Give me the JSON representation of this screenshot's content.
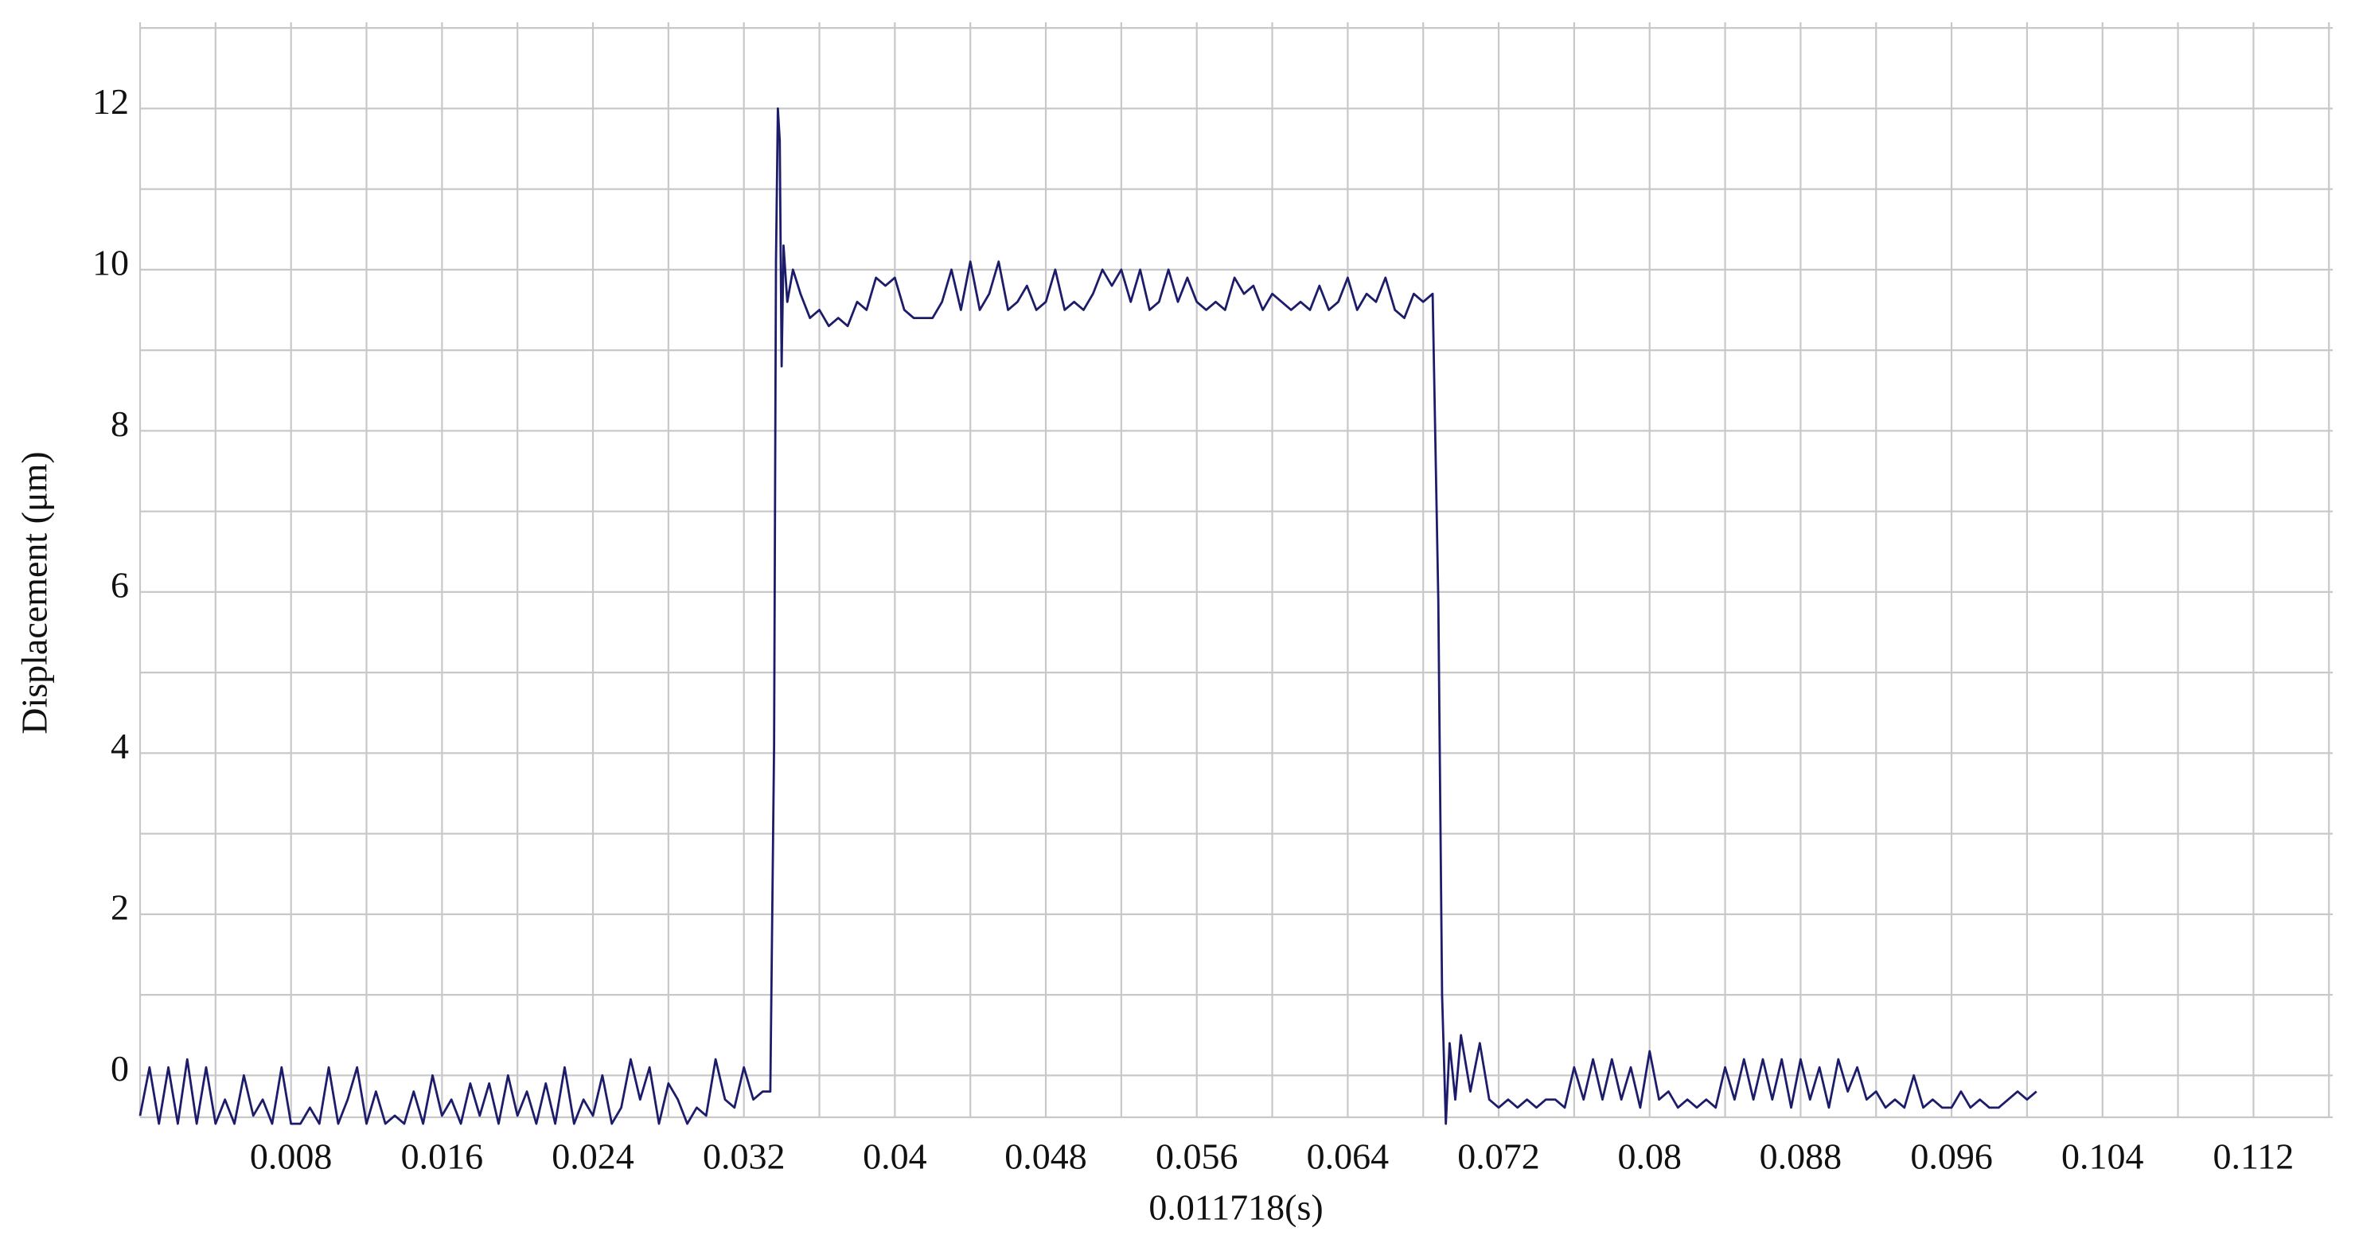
{
  "chart_data": {
    "type": "line",
    "x_label": "0.011718(s)",
    "y_label": "Displacement  (μm)",
    "color": "#1c1c6b",
    "grid": true,
    "xlim": [
      0,
      0.1162
    ],
    "ylim": [
      -0.52,
      13.07
    ],
    "xticks": [
      0.008,
      0.016,
      0.024,
      0.032,
      0.04,
      0.048,
      0.056,
      0.064,
      0.072,
      0.08,
      0.088,
      0.096,
      0.104,
      0.112
    ],
    "yticks": [
      0,
      2,
      4,
      6,
      8,
      10,
      12
    ],
    "x_minor_grid": [
      0,
      0.004,
      0.012,
      0.02,
      0.028,
      0.036,
      0.044,
      0.052,
      0.06,
      0.068,
      0.076,
      0.084,
      0.092,
      0.1,
      0.108,
      0.116
    ],
    "y_minor_grid": [
      1,
      3,
      5,
      7,
      9,
      11,
      13
    ],
    "x": [
      0,
      0.0005,
      0.001,
      0.0015,
      0.002,
      0.0025,
      0.003,
      0.0035,
      0.004,
      0.0045,
      0.005,
      0.0055,
      0.006,
      0.0065,
      0.007,
      0.0075,
      0.008,
      0.0085,
      0.009,
      0.0095,
      0.01,
      0.0105,
      0.011,
      0.0115,
      0.012,
      0.0125,
      0.013,
      0.0135,
      0.014,
      0.0145,
      0.015,
      0.0155,
      0.016,
      0.0165,
      0.017,
      0.0175,
      0.018,
      0.0185,
      0.019,
      0.0195,
      0.02,
      0.0205,
      0.021,
      0.0215,
      0.022,
      0.0225,
      0.023,
      0.0235,
      0.024,
      0.0245,
      0.025,
      0.0255,
      0.026,
      0.0265,
      0.027,
      0.0275,
      0.028,
      0.0285,
      0.029,
      0.0295,
      0.03,
      0.0305,
      0.031,
      0.0315,
      0.032,
      0.0325,
      0.033,
      0.0334,
      0.0336,
      0.0337,
      0.0338,
      0.0339,
      0.034,
      0.0341,
      0.0343,
      0.0346,
      0.035,
      0.0355,
      0.036,
      0.0365,
      0.037,
      0.0375,
      0.038,
      0.0385,
      0.039,
      0.0395,
      0.04,
      0.0405,
      0.041,
      0.0415,
      0.042,
      0.0425,
      0.043,
      0.0435,
      0.044,
      0.0445,
      0.045,
      0.0455,
      0.046,
      0.0465,
      0.047,
      0.0475,
      0.048,
      0.0485,
      0.049,
      0.0495,
      0.05,
      0.0505,
      0.051,
      0.0515,
      0.052,
      0.0525,
      0.053,
      0.0535,
      0.054,
      0.0545,
      0.055,
      0.0555,
      0.056,
      0.0565,
      0.057,
      0.0575,
      0.058,
      0.0585,
      0.059,
      0.0595,
      0.06,
      0.0605,
      0.061,
      0.0615,
      0.062,
      0.0625,
      0.063,
      0.0635,
      0.064,
      0.0645,
      0.065,
      0.0655,
      0.066,
      0.0665,
      0.067,
      0.0675,
      0.068,
      0.0685,
      0.0688,
      0.069,
      0.0692,
      0.0694,
      0.0697,
      0.07,
      0.0705,
      0.071,
      0.0715,
      0.072,
      0.0725,
      0.073,
      0.0735,
      0.074,
      0.0745,
      0.075,
      0.0755,
      0.076,
      0.0765,
      0.077,
      0.0775,
      0.078,
      0.0785,
      0.079,
      0.0795,
      0.08,
      0.0805,
      0.081,
      0.0815,
      0.082,
      0.0825,
      0.083,
      0.0835,
      0.084,
      0.0845,
      0.085,
      0.0855,
      0.086,
      0.0865,
      0.087,
      0.0875,
      0.088,
      0.0885,
      0.089,
      0.0895,
      0.09,
      0.0905,
      0.091,
      0.0915,
      0.092,
      0.0925,
      0.093,
      0.0935,
      0.094,
      0.0945,
      0.095,
      0.0955,
      0.096,
      0.0965,
      0.097,
      0.0975,
      0.098,
      0.0985,
      0.099,
      0.0995,
      0.1,
      0.1005
    ],
    "values": [
      -0.5,
      0.1,
      -0.6,
      0.1,
      -0.6,
      0.2,
      -0.6,
      0.1,
      -0.6,
      -0.3,
      -0.6,
      0.0,
      -0.5,
      -0.3,
      -0.6,
      0.1,
      -0.6,
      -0.6,
      -0.4,
      -0.6,
      0.1,
      -0.6,
      -0.3,
      0.1,
      -0.6,
      -0.2,
      -0.6,
      -0.5,
      -0.6,
      -0.2,
      -0.6,
      0.0,
      -0.5,
      -0.3,
      -0.6,
      -0.1,
      -0.5,
      -0.1,
      -0.6,
      0.0,
      -0.5,
      -0.2,
      -0.6,
      -0.1,
      -0.6,
      0.1,
      -0.6,
      -0.3,
      -0.5,
      0.0,
      -0.6,
      -0.4,
      0.2,
      -0.3,
      0.1,
      -0.6,
      -0.1,
      -0.3,
      -0.6,
      -0.4,
      -0.5,
      0.2,
      -0.3,
      -0.4,
      0.1,
      -0.3,
      -0.2,
      -0.2,
      4.1,
      10.1,
      12.0,
      11.6,
      8.8,
      10.3,
      9.6,
      10.0,
      9.7,
      9.4,
      9.5,
      9.3,
      9.4,
      9.3,
      9.6,
      9.5,
      9.9,
      9.8,
      9.9,
      9.5,
      9.4,
      9.4,
      9.4,
      9.6,
      10.0,
      9.5,
      10.1,
      9.5,
      9.7,
      10.1,
      9.5,
      9.6,
      9.8,
      9.5,
      9.6,
      10.0,
      9.5,
      9.6,
      9.5,
      9.7,
      10.0,
      9.8,
      10.0,
      9.6,
      10.0,
      9.5,
      9.6,
      10.0,
      9.6,
      9.9,
      9.6,
      9.5,
      9.6,
      9.5,
      9.9,
      9.7,
      9.8,
      9.5,
      9.7,
      9.6,
      9.5,
      9.6,
      9.5,
      9.8,
      9.5,
      9.6,
      9.9,
      9.5,
      9.7,
      9.6,
      9.9,
      9.5,
      9.4,
      9.7,
      9.6,
      9.7,
      5.9,
      1.0,
      -0.6,
      0.4,
      -0.3,
      0.5,
      -0.2,
      0.4,
      -0.3,
      -0.4,
      -0.3,
      -0.4,
      -0.3,
      -0.4,
      -0.3,
      -0.3,
      -0.4,
      0.1,
      -0.3,
      0.2,
      -0.3,
      0.2,
      -0.3,
      0.1,
      -0.4,
      0.3,
      -0.3,
      -0.2,
      -0.4,
      -0.3,
      -0.4,
      -0.3,
      -0.4,
      0.1,
      -0.3,
      0.2,
      -0.3,
      0.2,
      -0.3,
      0.2,
      -0.4,
      0.2,
      -0.3,
      0.1,
      -0.4,
      0.2,
      -0.2,
      0.1,
      -0.3,
      -0.2,
      -0.4,
      -0.3,
      -0.4,
      0.0,
      -0.4,
      -0.3,
      -0.4,
      -0.4,
      -0.2,
      -0.4,
      -0.3,
      -0.4,
      -0.4,
      -0.3,
      -0.2,
      -0.3,
      -0.2
    ]
  }
}
